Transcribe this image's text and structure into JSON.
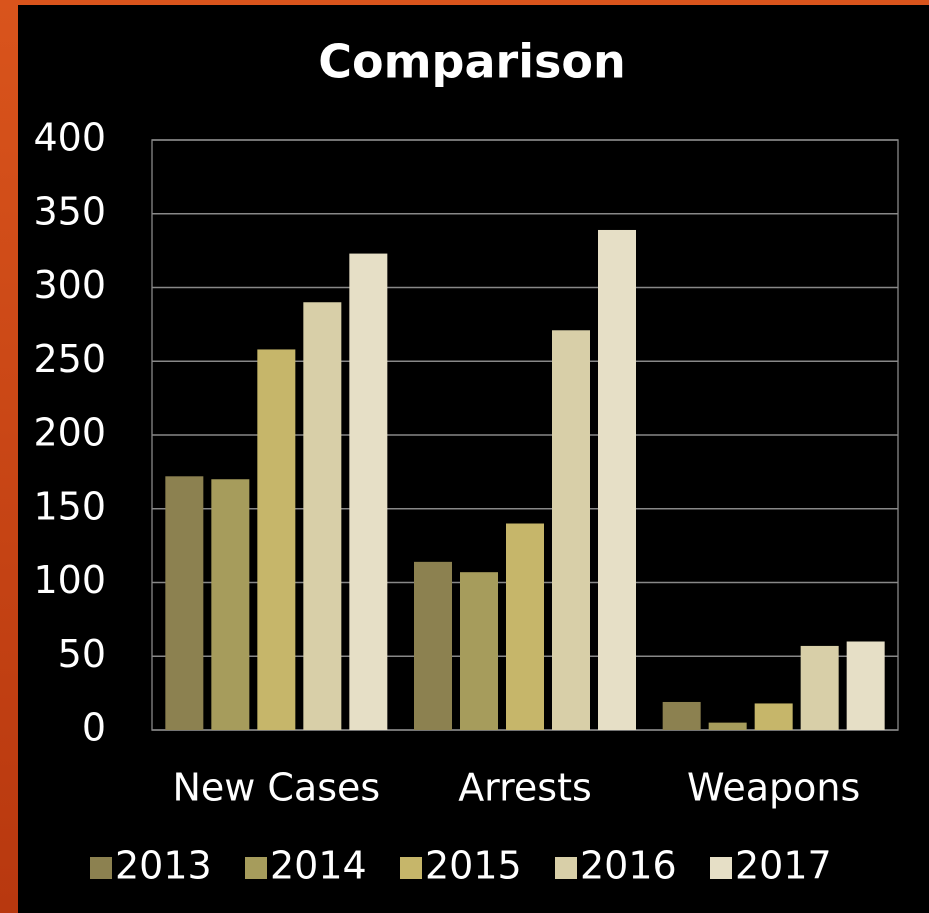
{
  "chart_data": {
    "type": "bar",
    "title": "Comparison",
    "categories": [
      "New Cases",
      "Arrests",
      "Weapons"
    ],
    "series": [
      {
        "name": "2013",
        "color": "#8c8150",
        "values": [
          172,
          114,
          19
        ]
      },
      {
        "name": "2014",
        "color": "#a69c5c",
        "values": [
          170,
          107,
          5
        ]
      },
      {
        "name": "2015",
        "color": "#c6b66a",
        "values": [
          258,
          140,
          18
        ]
      },
      {
        "name": "2016",
        "color": "#d8cfa8",
        "values": [
          290,
          271,
          57
        ]
      },
      {
        "name": "2017",
        "color": "#e6dfc6",
        "values": [
          323,
          339,
          60
        ]
      }
    ],
    "ylim": [
      0,
      400
    ],
    "yticks": [
      0,
      50,
      100,
      150,
      200,
      250,
      300,
      350,
      400
    ],
    "grid": true,
    "legend": "bottom"
  }
}
